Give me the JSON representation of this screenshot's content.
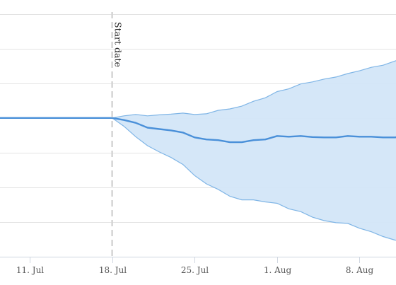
{
  "chart_data": {
    "type": "area",
    "x_type": "date",
    "x_ticks": [
      "11. Jul",
      "18. Jul",
      "25. Jul",
      "1. Aug",
      "8. Aug"
    ],
    "x_tick_dates": [
      "2023-07-11",
      "2023-07-18",
      "2023-07-25",
      "2023-08-01",
      "2023-08-08"
    ],
    "xlim": [
      "2023-07-08",
      "2023-08-14"
    ],
    "ylim": [
      -4,
      3.4
    ],
    "y_grid": [
      -4,
      -3,
      -2,
      -1,
      0,
      1,
      2,
      3
    ],
    "grid": true,
    "annotation": {
      "label": "Start date",
      "x": "2023-07-18"
    },
    "colors": {
      "line": "#4a90d9",
      "band_fill": "#d3e6f8",
      "band_edge": "#7fb5e6"
    },
    "x": [
      "2023-07-08",
      "2023-07-18",
      "2023-07-19",
      "2023-07-20",
      "2023-07-21",
      "2023-07-22",
      "2023-07-23",
      "2023-07-24",
      "2023-07-25",
      "2023-07-26",
      "2023-07-27",
      "2023-07-28",
      "2023-07-29",
      "2023-07-30",
      "2023-07-31",
      "2023-08-01",
      "2023-08-02",
      "2023-08-03",
      "2023-08-04",
      "2023-08-05",
      "2023-08-06",
      "2023-08-07",
      "2023-08-08",
      "2023-08-09",
      "2023-08-10",
      "2023-08-11",
      "2023-08-12",
      "2023-08-13",
      "2023-08-14"
    ],
    "series": [
      {
        "values": [
          0,
          0,
          -0.06,
          -0.14,
          -0.28,
          -0.32,
          -0.36,
          -0.42,
          -0.56,
          -0.62,
          -0.64,
          -0.7,
          -0.7,
          -0.64,
          -0.62,
          -0.52,
          -0.54,
          -0.52,
          -0.55,
          -0.56,
          -0.56,
          -0.52,
          -0.54,
          -0.54,
          -0.56,
          -0.56,
          -0.52,
          -0.46,
          -0.4
        ]
      },
      {
        "values": [
          0,
          0,
          0.06,
          0.1,
          0.06,
          0.09,
          0.11,
          0.14,
          0.1,
          0.12,
          0.22,
          0.26,
          0.34,
          0.48,
          0.58,
          0.76,
          0.84,
          0.98,
          1.04,
          1.12,
          1.18,
          1.28,
          1.36,
          1.46,
          1.52,
          1.64,
          1.76,
          1.86,
          2.0
        ]
      },
      {
        "values": [
          0,
          0,
          -0.24,
          -0.54,
          -0.8,
          -0.98,
          -1.14,
          -1.34,
          -1.66,
          -1.9,
          -2.06,
          -2.26,
          -2.36,
          -2.36,
          -2.42,
          -2.46,
          -2.62,
          -2.7,
          -2.86,
          -2.96,
          -3.02,
          -3.04,
          -3.18,
          -3.28,
          -3.42,
          -3.52,
          -3.56,
          -3.56,
          -3.52
        ]
      }
    ]
  }
}
